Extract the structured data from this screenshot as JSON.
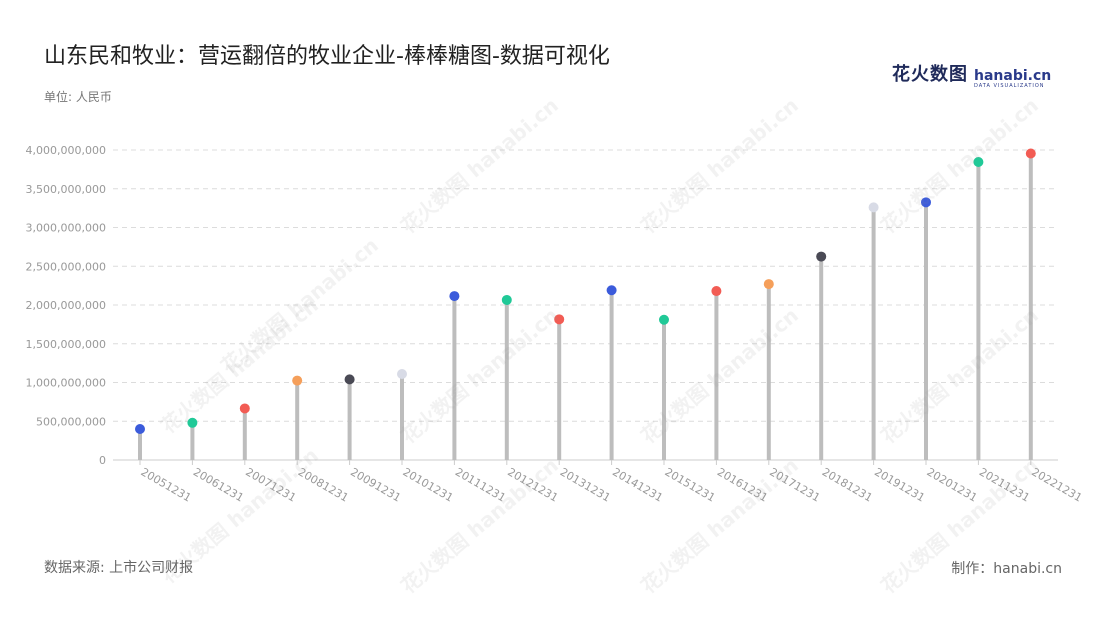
{
  "title": "山东民和牧业：营运翻倍的牧业企业-棒棒糖图-数据可视化",
  "logo": {
    "cn": "花火数图",
    "en": "hanabi.cn",
    "sub": "DATA VISUALIZATION"
  },
  "watermark_text": "花火数图 hanabi.cn",
  "unit_label": "单位: 人民币",
  "source": "数据来源: 上市公司财报",
  "credit": "制作：hanabi.cn",
  "chart_data": {
    "type": "lollipop",
    "title": "山东民和牧业：营运翻倍的牧业企业-棒棒糖图-数据可视化",
    "ylabel": "单位: 人民币",
    "ylim": [
      0,
      4000000000
    ],
    "yticks": [
      0,
      500000000,
      1000000000,
      1500000000,
      2000000000,
      2500000000,
      3000000000,
      3500000000,
      4000000000
    ],
    "ytick_labels": [
      "0",
      "500,000,000",
      "1,000,000,000",
      "1,500,000,000",
      "2,000,000,000",
      "2,500,000,000",
      "3,000,000,000",
      "3,500,000,000",
      "4,000,000,000"
    ],
    "grid": true,
    "categories": [
      "20051231",
      "20061231",
      "20071231",
      "20081231",
      "20091231",
      "20101231",
      "20111231",
      "20121231",
      "20131231",
      "20141231",
      "20151231",
      "20161231",
      "20171231",
      "20181231",
      "20191231",
      "20201231",
      "20211231",
      "20221231"
    ],
    "values": [
      400000000,
      480000000,
      665000000,
      1025000000,
      1040000000,
      1110000000,
      2115000000,
      2065000000,
      1815000000,
      2190000000,
      1810000000,
      2180000000,
      2270000000,
      2625000000,
      3260000000,
      3325000000,
      3845000000,
      3955000000
    ],
    "dot_colors": [
      "#3b5bdb",
      "#20c997",
      "#f25c54",
      "#f59f5a",
      "#4a4a55",
      "#d8dbe6",
      "#3b5bdb",
      "#20c997",
      "#f25c54",
      "#3b5bdb",
      "#20c997",
      "#f25c54",
      "#f59f5a",
      "#4a4a55",
      "#d8dbe6",
      "#3b5bdb",
      "#20c997",
      "#f25c54"
    ],
    "stem_color": "#bdbdbd",
    "grid_color": "#dcdcdc",
    "axis_color": "#cccccc",
    "tick_label_color": "#999999"
  }
}
